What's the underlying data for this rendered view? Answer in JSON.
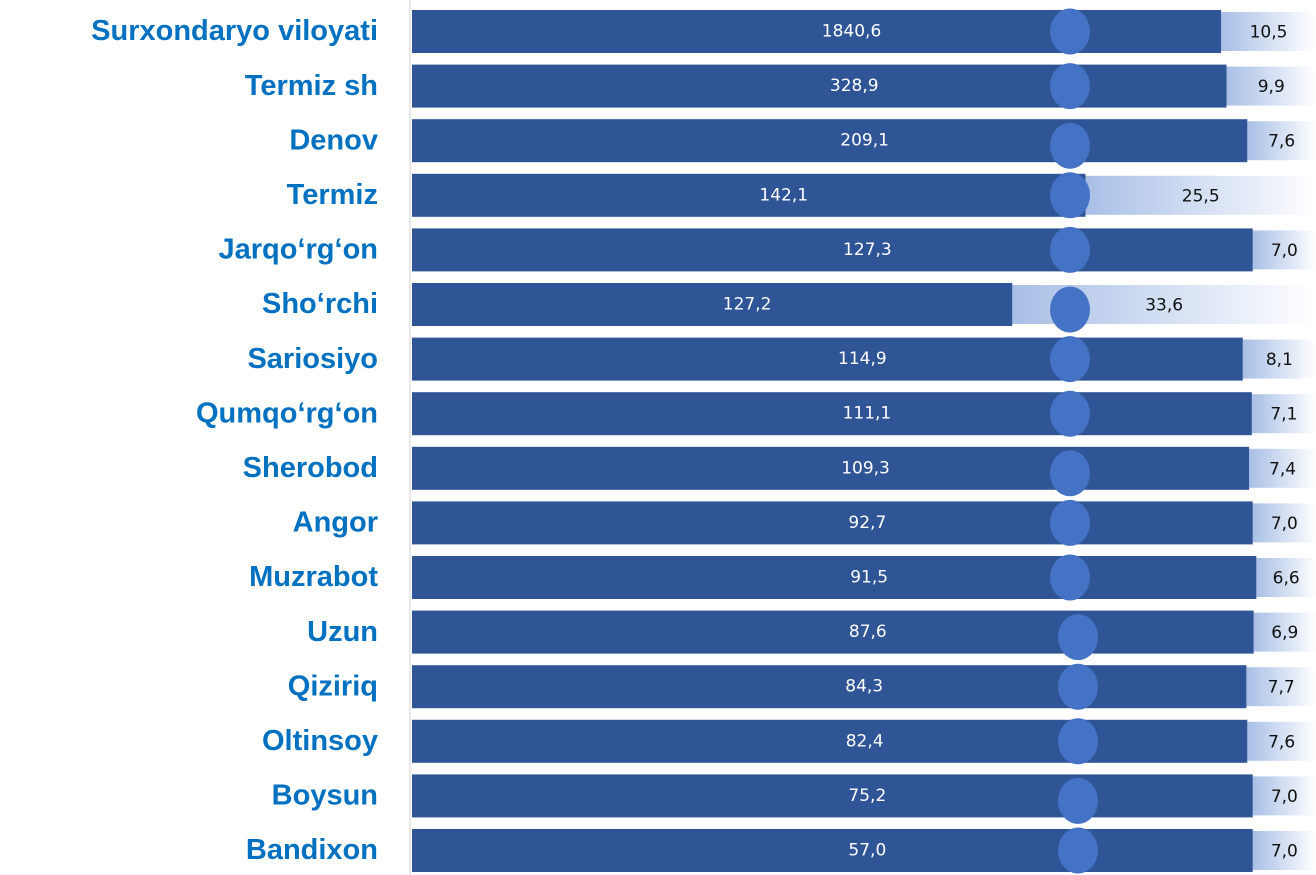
{
  "chart_data": {
    "type": "bar",
    "categories": [
      "Surxondaryo viloyati",
      "Termiz sh",
      "Denov",
      "Termiz ",
      "Jarqo‘rg‘on",
      "Sho‘rchi",
      "Sariosiyo",
      "Qumqo‘rg‘on",
      "Sherobod",
      "Angor",
      "Muzrabot",
      "Uzun",
      "Qiziriq",
      "Oltinsoy",
      "Boysun",
      "Bandixon"
    ],
    "values": [
      1840.6,
      328.9,
      209.1,
      142.1,
      127.3,
      127.2,
      114.9,
      111.1,
      109.3,
      92.7,
      91.5,
      87.6,
      84.3,
      82.4,
      75.2,
      57.0
    ],
    "value_labels": [
      "1840,6",
      "328,9",
      "209,1",
      "142,1",
      "127,3",
      "127,2",
      "114,9",
      "111,1",
      "109,3",
      "92,7",
      "91,5",
      "87,6",
      "84,3",
      "82,4",
      "75,2",
      "57,0"
    ],
    "shares": [
      10.5,
      9.9,
      7.6,
      25.5,
      7.0,
      33.6,
      8.1,
      7.1,
      7.4,
      7.0,
      6.6,
      6.9,
      7.7,
      7.6,
      7.0,
      7.0
    ],
    "share_labels": [
      "10,5",
      "9,9",
      "7,6",
      "25,5",
      "7,0",
      "33,6",
      "8,1",
      "7,1",
      "7,4",
      "7,0",
      "6,6",
      "6,9",
      "7,7",
      "7,6",
      "7,0",
      "7,0"
    ],
    "color": "#2f5597"
  }
}
